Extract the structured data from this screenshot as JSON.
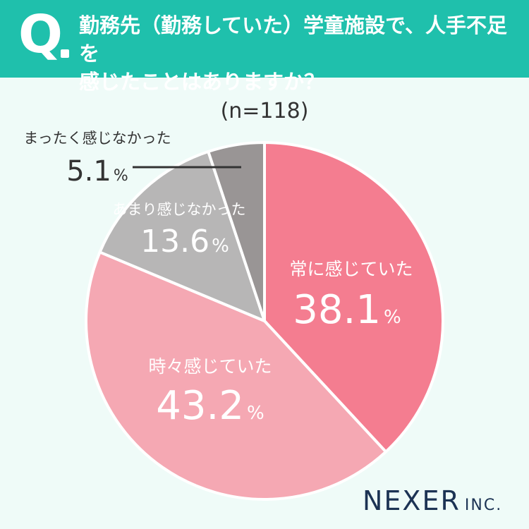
{
  "question": {
    "mark": "Q",
    "line1": "勤務先（勤務していた）学童施設で、人手不足を",
    "line2": "感じたことはありますか？"
  },
  "n_label": "(n=118)",
  "logo": {
    "main": "NEXER",
    "suffix": "INC."
  },
  "colors": {
    "header": "#1fc0ac",
    "background": "#effbf8",
    "always": "#f47d90",
    "sometimes": "#f5a8b3",
    "rarely": "#b7b6b6",
    "never": "#999595"
  },
  "chart_data": {
    "type": "pie",
    "start": "12 o'clock, clockwise",
    "labels": [
      "常に感じていた",
      "時々感じていた",
      "あまり感じなかった",
      "まったく感じなかった"
    ],
    "values": [
      38.1,
      43.2,
      13.6,
      5.1
    ],
    "value_texts": [
      "38.1",
      "43.2",
      "13.6",
      "5.1"
    ],
    "unit": "%"
  }
}
